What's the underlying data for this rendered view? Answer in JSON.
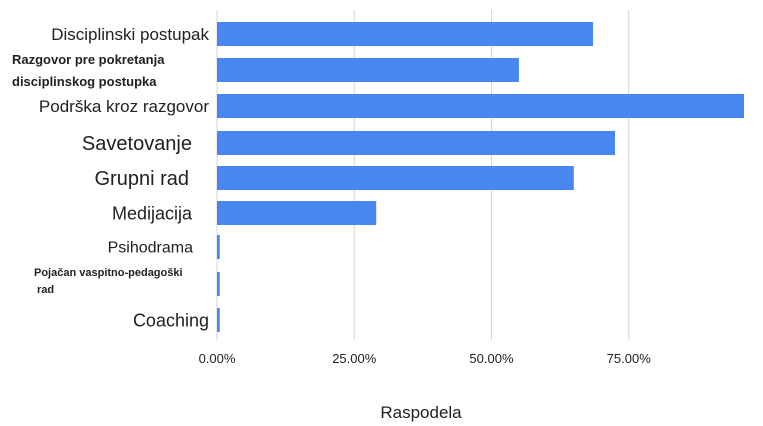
{
  "chart_data": {
    "type": "bar",
    "orientation": "horizontal",
    "categories": [
      "Disciplinski postupak",
      "Razgovor pre pokretanja disciplinskog postupka",
      "Podrška kroz razgovor",
      "Savetovanje",
      "Grupni rad",
      "Medijacija",
      "Psihodrama",
      "Pojačan vaspitno-pedagoški rad",
      "Coaching"
    ],
    "series": [
      {
        "values": [
          68.5,
          55.0,
          96.0,
          72.5,
          65.0,
          29.0,
          0.5,
          0.5,
          0.5
        ]
      }
    ],
    "xlim": [
      0,
      96
    ],
    "xticks": [
      "0.00%",
      "25.00%",
      "50.00%",
      "75.00%"
    ],
    "xtick_values": [
      0,
      25,
      50,
      75
    ],
    "xlabel": "Raspodela",
    "title": "",
    "ylabel": "",
    "grid": "vertical",
    "legend": "none",
    "bar_color": "#4a86f0",
    "grid_color": "#d6d6d6"
  }
}
